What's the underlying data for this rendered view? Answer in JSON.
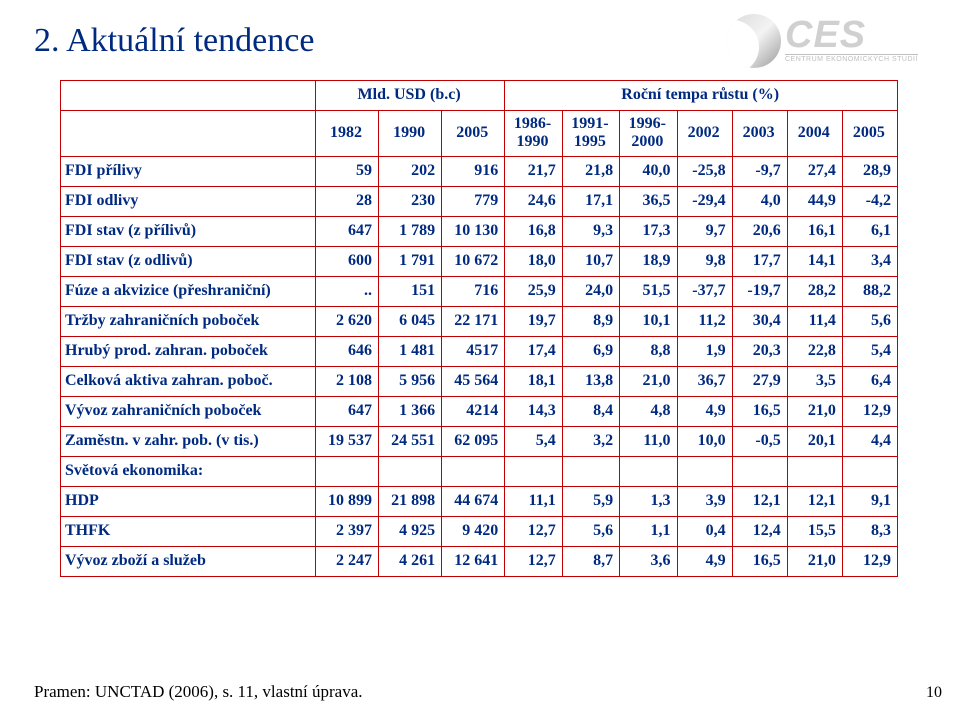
{
  "page": {
    "title": "2. Aktuální tendence",
    "number": "10",
    "source": "Pramen: UNCTAD (2006), s. 11, vlastní úprava."
  },
  "logo": {
    "main": "CES",
    "sub": "CENTRUM EKONOMICKÝCH STUDIÍ"
  },
  "colors": {
    "text": "#002a80",
    "border": "#c00000",
    "background": "#ffffff"
  },
  "table": {
    "group_headers": [
      "Mld. USD (b.c)",
      "Roční tempa růstu (%)"
    ],
    "columns": [
      "",
      "1982",
      "1990",
      "2005",
      "1986-1990",
      "1991-1995",
      "1996-2000",
      "2002",
      "2003",
      "2004",
      "2005"
    ],
    "rows": [
      {
        "label": "FDI přílivy",
        "cells": [
          "59",
          "202",
          "916",
          "21,7",
          "21,8",
          "40,0",
          "-25,8",
          "-9,7",
          "27,4",
          "28,9"
        ]
      },
      {
        "label": "FDI odlivy",
        "cells": [
          "28",
          "230",
          "779",
          "24,6",
          "17,1",
          "36,5",
          "-29,4",
          "4,0",
          "44,9",
          "-4,2"
        ]
      },
      {
        "label": "FDI stav (z přílivů)",
        "cells": [
          "647",
          "1 789",
          "10 130",
          "16,8",
          "9,3",
          "17,3",
          "9,7",
          "20,6",
          "16,1",
          "6,1"
        ]
      },
      {
        "label": "FDI stav (z odlivů)",
        "cells": [
          "600",
          "1 791",
          "10 672",
          "18,0",
          "10,7",
          "18,9",
          "9,8",
          "17,7",
          "14,1",
          "3,4"
        ]
      },
      {
        "label": "Fúze a akvizice (přeshraniční)",
        "cells": [
          "..",
          "151",
          "716",
          "25,9",
          "24,0",
          "51,5",
          "-37,7",
          "-19,7",
          "28,2",
          "88,2"
        ]
      },
      {
        "label": "Tržby zahraničních poboček",
        "cells": [
          "2 620",
          "6 045",
          "22 171",
          "19,7",
          "8,9",
          "10,1",
          "11,2",
          "30,4",
          "11,4",
          "5,6"
        ]
      },
      {
        "label": "Hrubý prod. zahran. poboček",
        "cells": [
          "646",
          "1 481",
          "4517",
          "17,4",
          "6,9",
          "8,8",
          "1,9",
          "20,3",
          "22,8",
          "5,4"
        ]
      },
      {
        "label": "Celková aktiva zahran. poboč.",
        "cells": [
          "2 108",
          "5 956",
          "45 564",
          "18,1",
          "13,8",
          "21,0",
          "36,7",
          "27,9",
          "3,5",
          "6,4"
        ]
      },
      {
        "label": "Vývoz zahraničních poboček",
        "cells": [
          "647",
          "1 366",
          "4214",
          "14,3",
          "8,4",
          "4,8",
          "4,9",
          "16,5",
          "21,0",
          "12,9"
        ]
      },
      {
        "label": "Zaměstn. v zahr. pob. (v tis.)",
        "cells": [
          "19 537",
          "24 551",
          "62 095",
          "5,4",
          "3,2",
          "11,0",
          "10,0",
          "-0,5",
          "20,1",
          "4,4"
        ]
      },
      {
        "label": "Světová ekonomika:",
        "cells": [
          "",
          "",
          "",
          "",
          "",
          "",
          "",
          "",
          "",
          ""
        ],
        "section": true
      },
      {
        "label": "HDP",
        "cells": [
          "10 899",
          "21 898",
          "44 674",
          "11,1",
          "5,9",
          "1,3",
          "3,9",
          "12,1",
          "12,1",
          "9,1"
        ]
      },
      {
        "label": "THFK",
        "cells": [
          "2 397",
          "4 925",
          "9 420",
          "12,7",
          "5,6",
          "1,1",
          "0,4",
          "12,4",
          "15,5",
          "8,3"
        ]
      },
      {
        "label": "Vývoz zboží a služeb",
        "cells": [
          "2 247",
          "4 261",
          "12 641",
          "12,7",
          "8,7",
          "3,6",
          "4,9",
          "16,5",
          "21,0",
          "12,9"
        ]
      }
    ]
  }
}
